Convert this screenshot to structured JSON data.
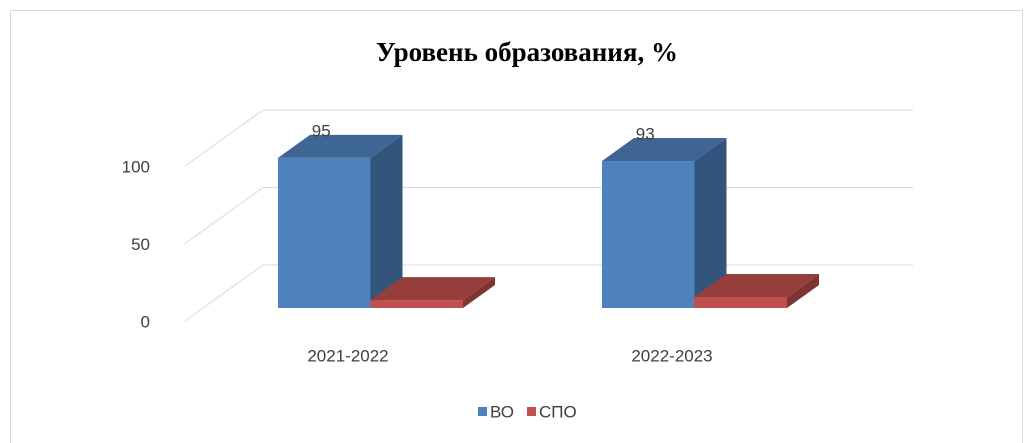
{
  "chart_data": {
    "type": "bar3d",
    "title": "Уровень образования, %",
    "categories": [
      "2021-2022",
      "2022-2023"
    ],
    "series": [
      {
        "name": "ВО",
        "color": "#4f81bd",
        "values": [
          95,
          93
        ],
        "value_labels": [
          "95",
          "93"
        ]
      },
      {
        "name": "СПО",
        "color": "#c0504d",
        "values": [
          5,
          7
        ]
      }
    ],
    "ylim": [
      0,
      100
    ],
    "yticks": [
      0,
      50,
      100
    ],
    "grid": true,
    "legend": "bottom"
  }
}
